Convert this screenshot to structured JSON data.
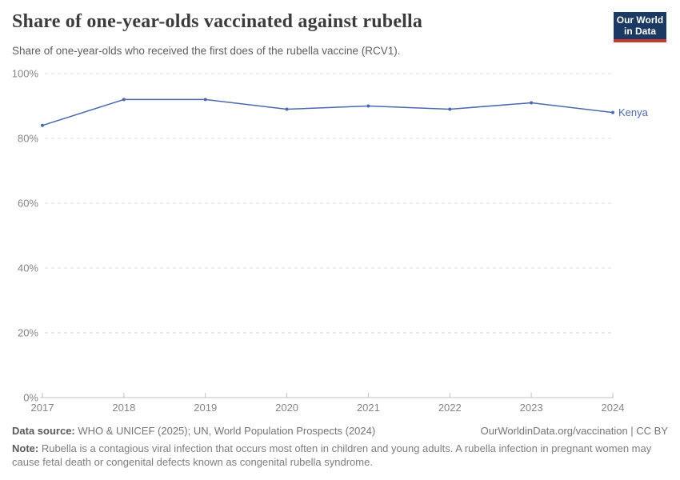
{
  "header": {
    "title": "Share of one-year-olds vaccinated against rubella",
    "subtitle": "Share of one-year-olds who received the first does of the rubella vaccine (RCV1).",
    "logo_line1": "Our World",
    "logo_line2": "in Data"
  },
  "chart_data": {
    "type": "line",
    "title": "Share of one-year-olds vaccinated against rubella",
    "x": [
      2017,
      2018,
      2019,
      2020,
      2021,
      2022,
      2023,
      2024
    ],
    "series": [
      {
        "name": "Kenya",
        "color": "#4a69ad",
        "values": [
          84,
          92,
          92,
          89,
          90,
          89,
          91,
          88
        ]
      }
    ],
    "ylim": [
      0,
      100
    ],
    "yticks": [
      0,
      20,
      40,
      60,
      80,
      100
    ],
    "ytick_suffix": "%",
    "grid": true,
    "legend_position": "end-of-line",
    "colors": {
      "gridline": "#dcdcdc",
      "axis": "#c2c2c2",
      "tick_label": "#858585"
    }
  },
  "footer": {
    "datasource_label": "Data source:",
    "datasource_value": " WHO & UNICEF (2025); UN, World Population Prospects (2024)",
    "link": "OurWorldinData.org/vaccination | CC BY",
    "note_label": "Note:",
    "note_value": " Rubella is a contagious viral infection that occurs most often in children and young adults. A rubella infection in pregnant women may cause fetal death or congenital defects known as congenital rubella syndrome."
  }
}
